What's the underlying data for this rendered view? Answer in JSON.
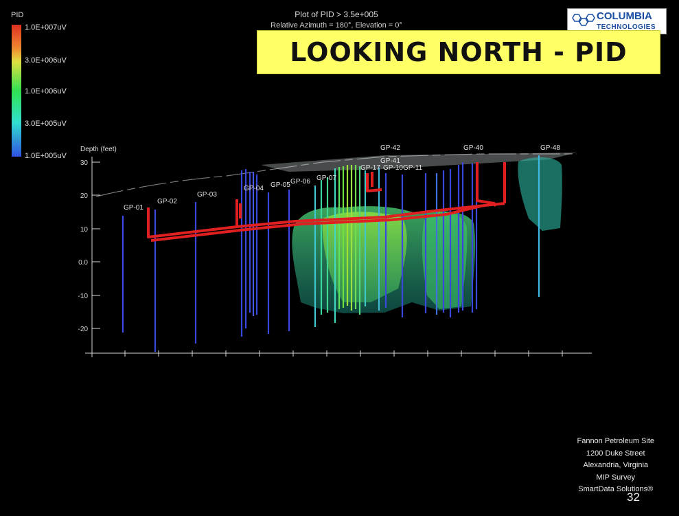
{
  "header": {
    "title": "Plot of PID > 3.5e+005",
    "subtitle": "Relative Azimuth = 180°, Elevation = 0°",
    "banner": "LOOKING NORTH - PID"
  },
  "logo": {
    "line1": "COLUMBIA",
    "line2": "TECHNOLOGIES"
  },
  "legend": {
    "title": "PID",
    "labels": [
      "1.0E+007uV",
      "3.0E+006uV",
      "1.0E+006uV",
      "3.0E+005uV",
      "1.0E+005uV"
    ]
  },
  "axis": {
    "title": "Depth (feet)",
    "ticks": [
      "30",
      "20",
      "10",
      "0.0",
      "-10",
      "-20"
    ]
  },
  "borings": [
    "GP-01",
    "GP-02",
    "GP-03",
    "GP-04",
    "GP-05",
    "GP-06",
    "GP-07",
    "GP-10",
    "GP-11",
    "GP-17",
    "GP-40",
    "GP-41",
    "GP-42",
    "GP-48"
  ],
  "site_info": {
    "name": "Fannon Petroleum Site",
    "street": "1200 Duke Street",
    "city": "Alexandria, Virginia",
    "survey": "MIP Survey",
    "vendor": "SmartData Solutions®"
  },
  "page_number": "32",
  "colors": {
    "banner": "#ffff66",
    "pipe": "#e02020",
    "background": "#000000"
  }
}
